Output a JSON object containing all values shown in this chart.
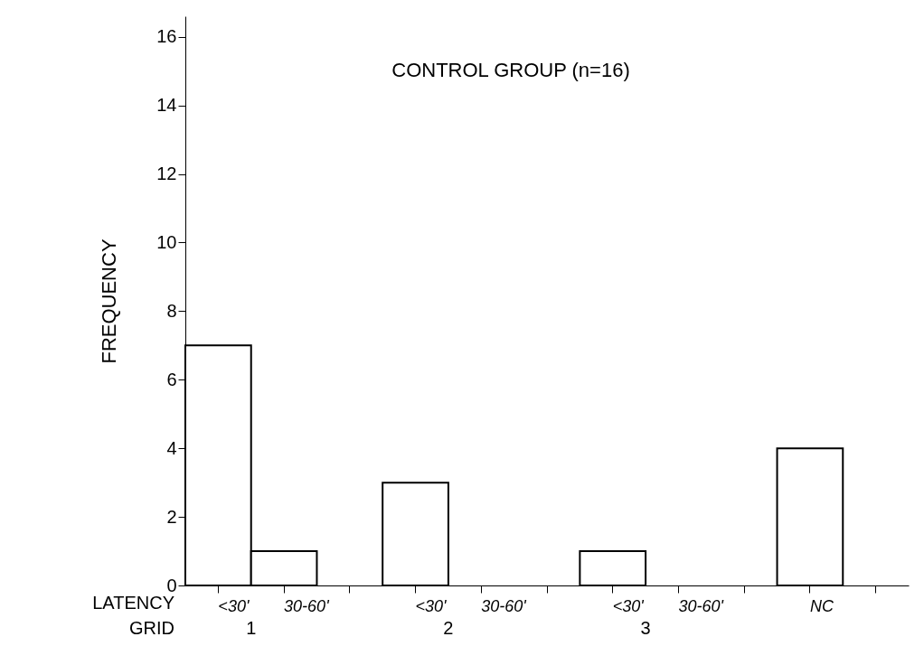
{
  "chart_data": {
    "type": "bar",
    "title": "CONTROL GROUP (n=16)",
    "xlabel": "LATENCY",
    "ylabel": "FREQUENCY",
    "categories": [
      "<30'",
      "30-60'",
      null,
      "<30'",
      "30-60'",
      null,
      "<30'",
      "30-60'",
      null,
      "NC",
      null
    ],
    "values": [
      7,
      1,
      null,
      3,
      0,
      null,
      1,
      0,
      null,
      4,
      null
    ],
    "color": "#ffffff",
    "ylim": [
      0,
      16.6
    ],
    "yticks": [
      0,
      2,
      4,
      6,
      8,
      10,
      12,
      14,
      16
    ],
    "grid": false,
    "annotations": [
      "GRID",
      "1",
      "2",
      "3"
    ]
  }
}
